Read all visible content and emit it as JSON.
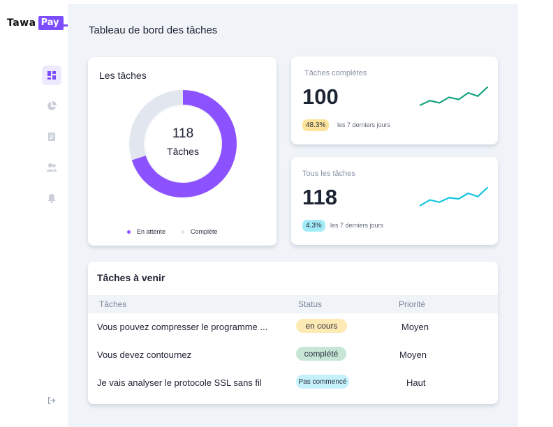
{
  "brand": {
    "name": "Tawa",
    "badge": "Pay"
  },
  "sidebar": {
    "items": [
      {
        "icon": "dashboard-icon",
        "active": true
      },
      {
        "icon": "pie-chart-icon",
        "active": false
      },
      {
        "icon": "document-icon",
        "active": false
      },
      {
        "icon": "users-icon",
        "active": false
      },
      {
        "icon": "bell-icon",
        "active": false
      }
    ],
    "logout_icon": "logout-icon"
  },
  "page": {
    "title": "Tableau de bord des tâches"
  },
  "tasks_card": {
    "title": "Les tâches",
    "total": "118",
    "total_label": "Tâches",
    "chart_data": {
      "type": "pie",
      "values": [
        70,
        30
      ],
      "labels": [
        "En attente",
        "Complète"
      ],
      "colors": [
        "#8c52ff",
        "#e2e6ee"
      ]
    },
    "legend": [
      {
        "label": "En attente",
        "color": "#8c52ff"
      },
      {
        "label": "Complète",
        "color": "#e2e6ee"
      }
    ]
  },
  "stats": [
    {
      "label": "Tâches complétes",
      "value": "100",
      "badge": "48.3%",
      "badge_color": "#fde49a",
      "period": "les 7 derniers jours",
      "line_color": "#14a37f",
      "spark": [
        0.2,
        0.4,
        0.3,
        0.55,
        0.45,
        0.75,
        0.6,
        1.0
      ]
    },
    {
      "label": "Tous les tâches",
      "value": "118",
      "badge": "4.3%",
      "badge_color": "#a3ecf7",
      "period": "les 7 derniers jours",
      "line_color": "#16c6e3",
      "spark": [
        0.2,
        0.45,
        0.35,
        0.55,
        0.5,
        0.75,
        0.6,
        1.0
      ]
    }
  ],
  "upcoming": {
    "title": "Tâches à venir",
    "columns": [
      "Tâches",
      "Status",
      "Priorité"
    ],
    "rows": [
      {
        "task": "Vous pouvez compresser le programme ...",
        "status": "en cours",
        "status_color": "#fde9b3",
        "priority": "Moyen"
      },
      {
        "task": "Vous devez contournez",
        "status": "complété",
        "status_color": "#c7e6d6",
        "priority": "Moyen"
      },
      {
        "task": "Je vais analyser le protocole SSL sans fil",
        "status": "Pas commencé",
        "status_color": "#c4f1fb",
        "priority": "Haut"
      }
    ]
  }
}
